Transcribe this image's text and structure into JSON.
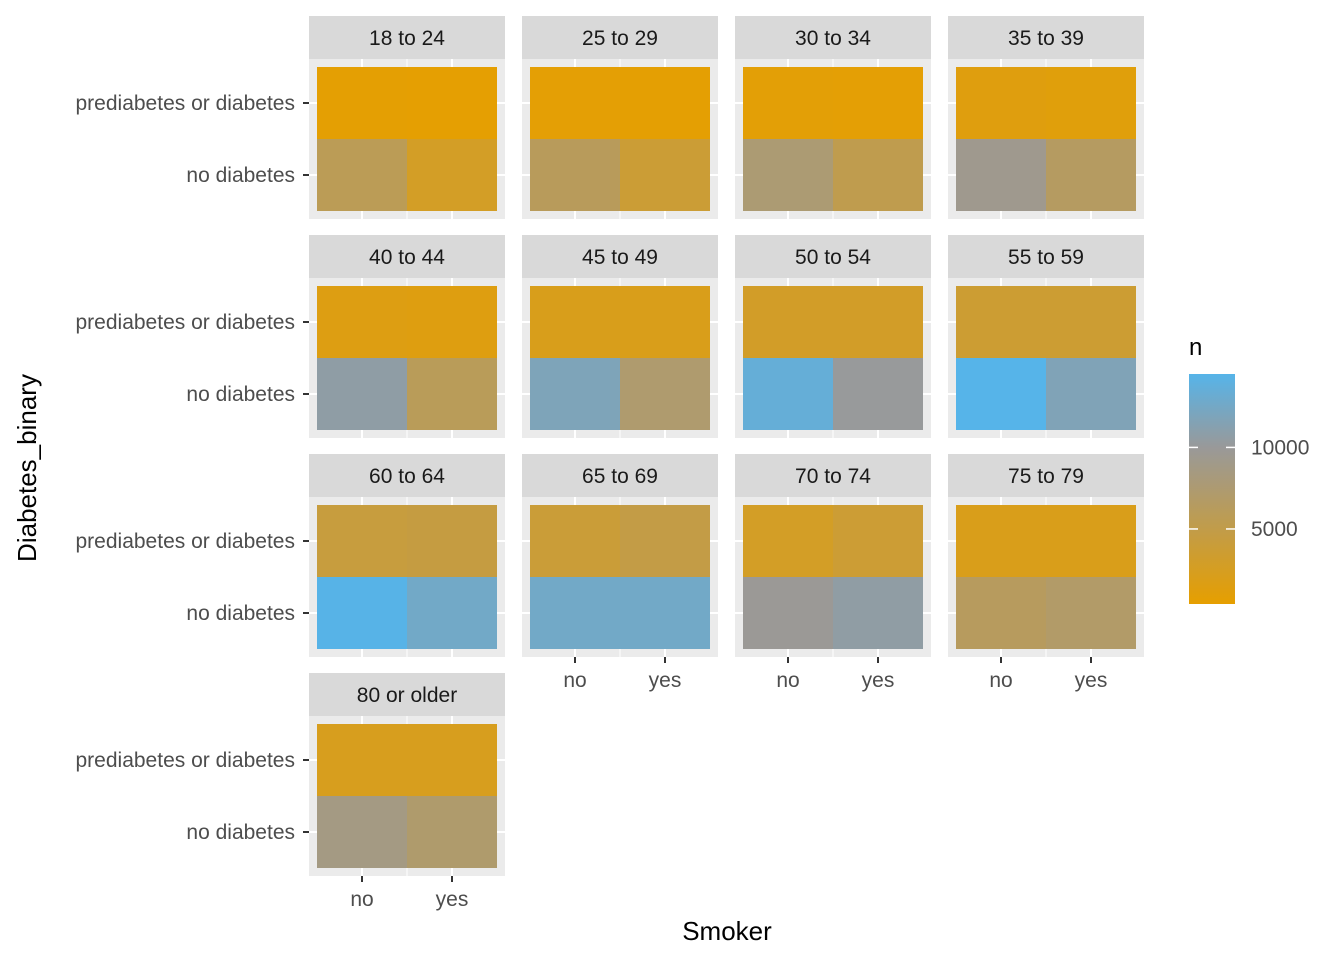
{
  "chart_data": {
    "type": "heatmap",
    "facet_by": "age group",
    "xlabel": "Smoker",
    "ylabel": "Diabetes_binary",
    "x_categories": [
      "no",
      "yes"
    ],
    "y_categories": [
      "prediabetes or diabetes",
      "no diabetes"
    ],
    "legend": {
      "title": "n",
      "position": "right",
      "ticks": [
        5000,
        10000
      ],
      "tick_labels": [
        "5000",
        "10000"
      ],
      "range": [
        400,
        14500
      ],
      "low_color": "#E69F00",
      "mid_color": "#999999",
      "high_color": "#56B4E9",
      "midpoint": 10000
    },
    "facets": [
      {
        "label": "18 to 24",
        "values": {
          "no": {
            "prediabetes or diabetes": 600,
            "no diabetes": 5800
          },
          "yes": {
            "prediabetes or diabetes": 500,
            "no diabetes": 2800
          }
        }
      },
      {
        "label": "25 to 29",
        "values": {
          "no": {
            "prediabetes or diabetes": 700,
            "no diabetes": 6100
          },
          "yes": {
            "prediabetes or diabetes": 600,
            "no diabetes": 3800
          }
        }
      },
      {
        "label": "30 to 34",
        "values": {
          "no": {
            "prediabetes or diabetes": 800,
            "no diabetes": 7600
          },
          "yes": {
            "prediabetes or diabetes": 700,
            "no diabetes": 5300
          }
        }
      },
      {
        "label": "35 to 39",
        "values": {
          "no": {
            "prediabetes or diabetes": 1300,
            "no diabetes": 9300
          },
          "yes": {
            "prediabetes or diabetes": 1100,
            "no diabetes": 6500
          }
        }
      },
      {
        "label": "40 to 44",
        "values": {
          "no": {
            "prediabetes or diabetes": 1500,
            "no diabetes": 10700
          },
          "yes": {
            "prediabetes or diabetes": 1400,
            "no diabetes": 6000
          }
        }
      },
      {
        "label": "45 to 49",
        "values": {
          "no": {
            "prediabetes or diabetes": 2100,
            "no diabetes": 11800
          },
          "yes": {
            "prediabetes or diabetes": 2000,
            "no diabetes": 7300
          }
        }
      },
      {
        "label": "50 to 54",
        "values": {
          "no": {
            "prediabetes or diabetes": 2900,
            "no diabetes": 13500
          },
          "yes": {
            "prediabetes or diabetes": 2900,
            "no diabetes": 10100
          }
        }
      },
      {
        "label": "55 to 59",
        "values": {
          "no": {
            "prediabetes or diabetes": 3600,
            "no diabetes": 14500
          },
          "yes": {
            "prediabetes or diabetes": 3600,
            "no diabetes": 11700
          }
        }
      },
      {
        "label": "60 to 64",
        "values": {
          "no": {
            "prediabetes or diabetes": 4300,
            "no diabetes": 14400
          },
          "yes": {
            "prediabetes or diabetes": 4500,
            "no diabetes": 12600
          }
        }
      },
      {
        "label": "65 to 69",
        "values": {
          "no": {
            "prediabetes or diabetes": 3900,
            "no diabetes": 12600
          },
          "yes": {
            "prediabetes or diabetes": 4800,
            "no diabetes": 12600
          }
        }
      },
      {
        "label": "70 to 74",
        "values": {
          "no": {
            "prediabetes or diabetes": 2800,
            "no diabetes": 9800
          },
          "yes": {
            "prediabetes or diabetes": 3700,
            "no diabetes": 10600
          }
        }
      },
      {
        "label": "75 to 79",
        "values": {
          "no": {
            "prediabetes or diabetes": 2000,
            "no diabetes": 6300
          },
          "yes": {
            "prediabetes or diabetes": 2000,
            "no diabetes": 6900
          }
        }
      },
      {
        "label": "80 or older",
        "values": {
          "no": {
            "prediabetes or diabetes": 2300,
            "no diabetes": 8600
          },
          "yes": {
            "prediabetes or diabetes": 2300,
            "no diabetes": 7200
          }
        }
      }
    ]
  }
}
